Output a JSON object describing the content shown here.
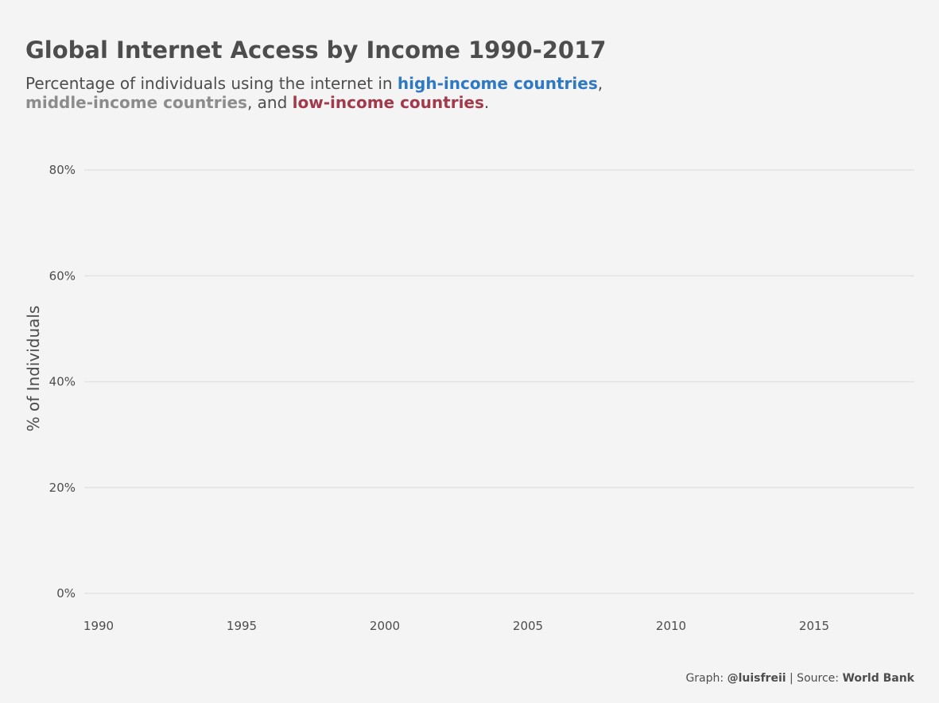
{
  "chart_data": {
    "type": "line",
    "title": "Global Internet Access by Income 1990-2017",
    "subtitle": {
      "lead": "Percentage of individuals using the internet in ",
      "high": "high-income countries",
      "sep1": ",",
      "middle": "middle-income countries",
      "sep2": ", and ",
      "low": "low-income countries",
      "end": "."
    },
    "xlabel": "",
    "ylabel": "% of Individuals",
    "x_ticks": [
      "1990",
      "1995",
      "2000",
      "2005",
      "2010",
      "2015"
    ],
    "y_ticks": [
      "0%",
      "20%",
      "40%",
      "60%",
      "80%"
    ],
    "xlim": [
      1989.5,
      2018.5
    ],
    "ylim": [
      0,
      80
    ],
    "grid": true,
    "legend": "none",
    "series": [],
    "colors": {
      "high": "#2f78c4",
      "middle": "#8c8c8c",
      "low": "#a33a4c"
    }
  },
  "caption": {
    "graph_label": "Graph: ",
    "author": "@luisfreii",
    "source_label": " | Source: ",
    "source": "World Bank"
  }
}
